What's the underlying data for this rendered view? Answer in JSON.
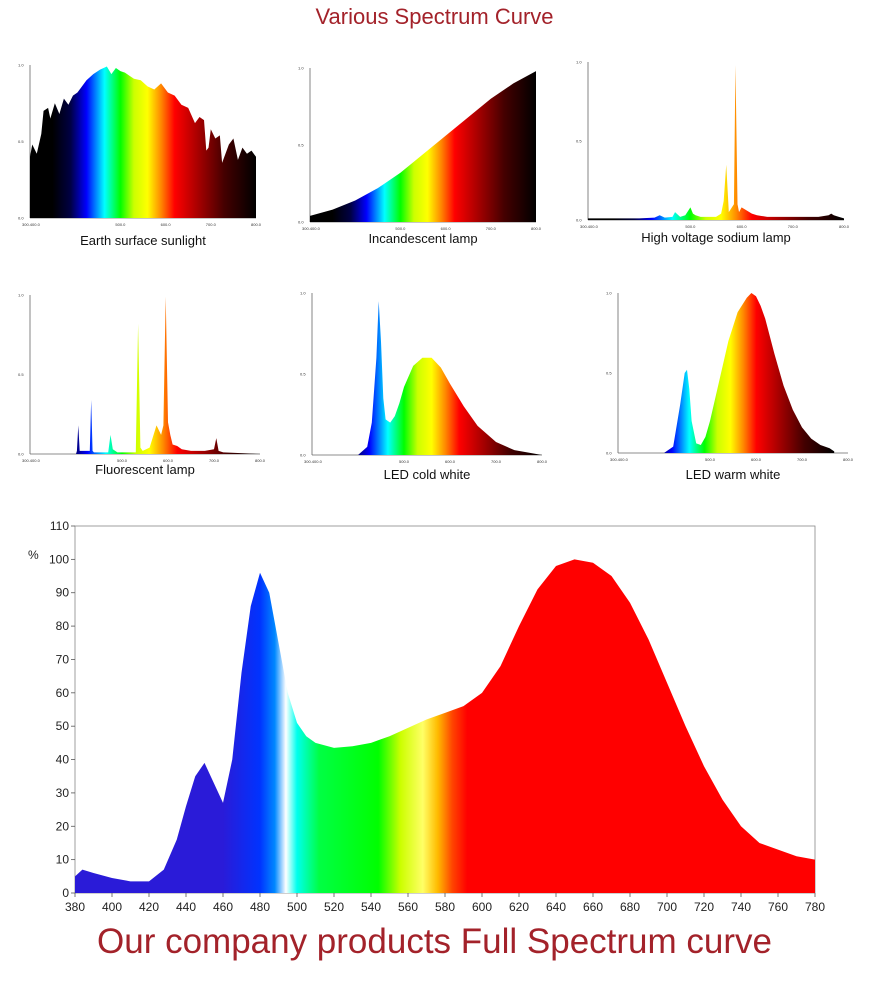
{
  "page": {
    "title": "Various Spectrum Curve",
    "footer": "Our company products Full Spectrum curve"
  },
  "colors": {
    "title": "#a3222a",
    "axis": "#666666"
  },
  "chart_data": [
    {
      "type": "area",
      "title": "Earth surface sunlight",
      "xlim": [
        300,
        800
      ],
      "ylim": [
        0,
        1
      ],
      "yticks": [
        "0.0",
        "0.5",
        "1.0"
      ],
      "xticks": [
        "300.400.0",
        "500.0",
        "600.0",
        "700.0",
        "800.0"
      ],
      "xtick_values": [
        300,
        500,
        600,
        700,
        800
      ],
      "x": [
        300,
        305,
        315,
        325,
        330,
        340,
        345,
        355,
        365,
        375,
        385,
        395,
        405,
        415,
        425,
        440,
        455,
        470,
        480,
        490,
        500,
        510,
        520,
        530,
        545,
        560,
        575,
        590,
        605,
        620,
        635,
        650,
        665,
        675,
        685,
        690,
        695,
        700,
        710,
        720,
        725,
        730,
        740,
        750,
        760,
        770,
        780,
        790,
        800
      ],
      "y": [
        0.4,
        0.48,
        0.42,
        0.55,
        0.7,
        0.72,
        0.65,
        0.75,
        0.68,
        0.78,
        0.74,
        0.8,
        0.82,
        0.86,
        0.9,
        0.94,
        0.97,
        0.99,
        0.94,
        0.98,
        0.96,
        0.95,
        0.93,
        0.91,
        0.9,
        0.86,
        0.84,
        0.88,
        0.82,
        0.8,
        0.74,
        0.72,
        0.62,
        0.66,
        0.64,
        0.44,
        0.46,
        0.58,
        0.52,
        0.54,
        0.36,
        0.4,
        0.48,
        0.52,
        0.38,
        0.46,
        0.42,
        0.44,
        0.4
      ]
    },
    {
      "type": "area",
      "title": "Incandescent lamp",
      "xlim": [
        300,
        800
      ],
      "ylim": [
        0,
        1
      ],
      "yticks": [
        "0.0",
        "0.5",
        "1.0"
      ],
      "xticks": [
        "300.400.0",
        "500.0",
        "600.0",
        "700.0",
        "800.0"
      ],
      "xtick_values": [
        300,
        500,
        600,
        700,
        800
      ],
      "x": [
        300,
        350,
        400,
        450,
        500,
        550,
        600,
        650,
        700,
        750,
        800
      ],
      "y": [
        0.04,
        0.08,
        0.14,
        0.22,
        0.32,
        0.44,
        0.56,
        0.68,
        0.8,
        0.9,
        0.98
      ]
    },
    {
      "type": "area",
      "title": "High voltage sodium lamp",
      "xlim": [
        300,
        800
      ],
      "ylim": [
        0,
        1
      ],
      "yticks": [
        "0.0",
        "0.5",
        "1.0"
      ],
      "xticks": [
        "300.400.0",
        "500.0",
        "600.0",
        "700.0",
        "800.0"
      ],
      "xtick_values": [
        300,
        500,
        600,
        700,
        800
      ],
      "x": [
        300,
        400,
        430,
        440,
        450,
        465,
        470,
        480,
        490,
        500,
        505,
        510,
        520,
        550,
        560,
        565,
        570,
        575,
        585,
        588,
        592,
        595,
        600,
        610,
        620,
        630,
        650,
        700,
        750,
        770,
        775,
        780,
        790,
        800
      ],
      "y": [
        0.01,
        0.01,
        0.015,
        0.03,
        0.015,
        0.02,
        0.05,
        0.02,
        0.03,
        0.08,
        0.04,
        0.03,
        0.02,
        0.02,
        0.04,
        0.12,
        0.35,
        0.05,
        0.1,
        0.98,
        0.1,
        0.05,
        0.08,
        0.06,
        0.04,
        0.03,
        0.02,
        0.02,
        0.02,
        0.03,
        0.04,
        0.03,
        0.02,
        0.01
      ]
    },
    {
      "type": "area",
      "title": "Fluorescent lamp",
      "xlim": [
        300,
        800
      ],
      "ylim": [
        0,
        1
      ],
      "yticks": [
        "0.0",
        "0.5",
        "1.0"
      ],
      "xticks": [
        "300.400.0",
        "500.0",
        "600.0",
        "700.0",
        "800.0"
      ],
      "xtick_values": [
        300,
        500,
        600,
        700,
        800
      ],
      "x": [
        300,
        400,
        402,
        405,
        408,
        430,
        433,
        436,
        439,
        470,
        475,
        480,
        490,
        530,
        535,
        540,
        545,
        560,
        575,
        585,
        590,
        595,
        600,
        605,
        610,
        620,
        630,
        650,
        680,
        700,
        705,
        710,
        720,
        800
      ],
      "y": [
        0,
        0,
        0.02,
        0.18,
        0.02,
        0.02,
        0.34,
        0.02,
        0.01,
        0.01,
        0.12,
        0.03,
        0.01,
        0.01,
        0.82,
        0.04,
        0.02,
        0.04,
        0.18,
        0.12,
        0.18,
        0.99,
        0.2,
        0.12,
        0.06,
        0.05,
        0.03,
        0.02,
        0.02,
        0.03,
        0.1,
        0.02,
        0.01,
        0
      ]
    },
    {
      "type": "area",
      "title": "LED cold white",
      "xlim": [
        300,
        800
      ],
      "ylim": [
        0,
        1
      ],
      "yticks": [
        "0.0",
        "0.5",
        "1.0"
      ],
      "xticks": [
        "300.400.0",
        "500.0",
        "600.0",
        "700.0",
        "800.0"
      ],
      "xtick_values": [
        300,
        500,
        600,
        700,
        800
      ],
      "x": [
        300,
        400,
        420,
        430,
        440,
        445,
        450,
        455,
        460,
        470,
        480,
        490,
        500,
        520,
        540,
        560,
        580,
        600,
        630,
        660,
        700,
        740,
        780,
        800
      ],
      "y": [
        0,
        0,
        0.05,
        0.2,
        0.6,
        0.95,
        0.7,
        0.35,
        0.22,
        0.2,
        0.24,
        0.32,
        0.42,
        0.55,
        0.6,
        0.6,
        0.54,
        0.44,
        0.3,
        0.18,
        0.08,
        0.03,
        0.01,
        0
      ]
    },
    {
      "type": "area",
      "title": "LED warm white",
      "xlim": [
        300,
        800
      ],
      "ylim": [
        0,
        1
      ],
      "yticks": [
        "0.0",
        "0.5",
        "1.0"
      ],
      "xticks": [
        "300.400.0",
        "500.0",
        "600.0",
        "700.0",
        "800.0"
      ],
      "xtick_values": [
        300,
        500,
        600,
        700,
        800
      ],
      "x": [
        300,
        400,
        420,
        435,
        445,
        450,
        455,
        460,
        470,
        480,
        490,
        500,
        520,
        540,
        560,
        580,
        590,
        600,
        610,
        620,
        640,
        660,
        680,
        700,
        720,
        740,
        760,
        770
      ],
      "y": [
        0,
        0,
        0.04,
        0.3,
        0.5,
        0.52,
        0.4,
        0.2,
        0.06,
        0.05,
        0.1,
        0.2,
        0.45,
        0.7,
        0.88,
        0.97,
        1.0,
        0.98,
        0.92,
        0.84,
        0.62,
        0.42,
        0.27,
        0.16,
        0.09,
        0.05,
        0.03,
        0.01
      ]
    },
    {
      "type": "area",
      "title": "Our company products Full Spectrum curve",
      "ylabel": "%",
      "xlim": [
        380,
        780
      ],
      "ylim": [
        0,
        110
      ],
      "xticks": [
        380,
        400,
        420,
        440,
        460,
        480,
        500,
        520,
        540,
        560,
        580,
        600,
        620,
        640,
        660,
        680,
        700,
        720,
        740,
        760,
        780
      ],
      "yticks": [
        0,
        10,
        20,
        30,
        40,
        50,
        60,
        70,
        80,
        90,
        100,
        110
      ],
      "x": [
        380,
        384,
        390,
        400,
        410,
        420,
        428,
        435,
        440,
        445,
        450,
        455,
        460,
        465,
        470,
        475,
        480,
        485,
        490,
        495,
        500,
        505,
        510,
        520,
        530,
        540,
        550,
        560,
        570,
        580,
        590,
        600,
        610,
        620,
        630,
        640,
        650,
        660,
        670,
        680,
        690,
        700,
        710,
        720,
        730,
        740,
        750,
        760,
        770,
        780
      ],
      "y": [
        5,
        7,
        6,
        4.5,
        3.5,
        3.5,
        7,
        16,
        26,
        35,
        39,
        33,
        27,
        40,
        66,
        86,
        96,
        90,
        75,
        60,
        51,
        47,
        45,
        43.5,
        44,
        45,
        47,
        49.5,
        52,
        54,
        56,
        60,
        68,
        80,
        91,
        98,
        100,
        99,
        95,
        87,
        76,
        63,
        50,
        38,
        28,
        20,
        15,
        13,
        11,
        10
      ]
    }
  ]
}
